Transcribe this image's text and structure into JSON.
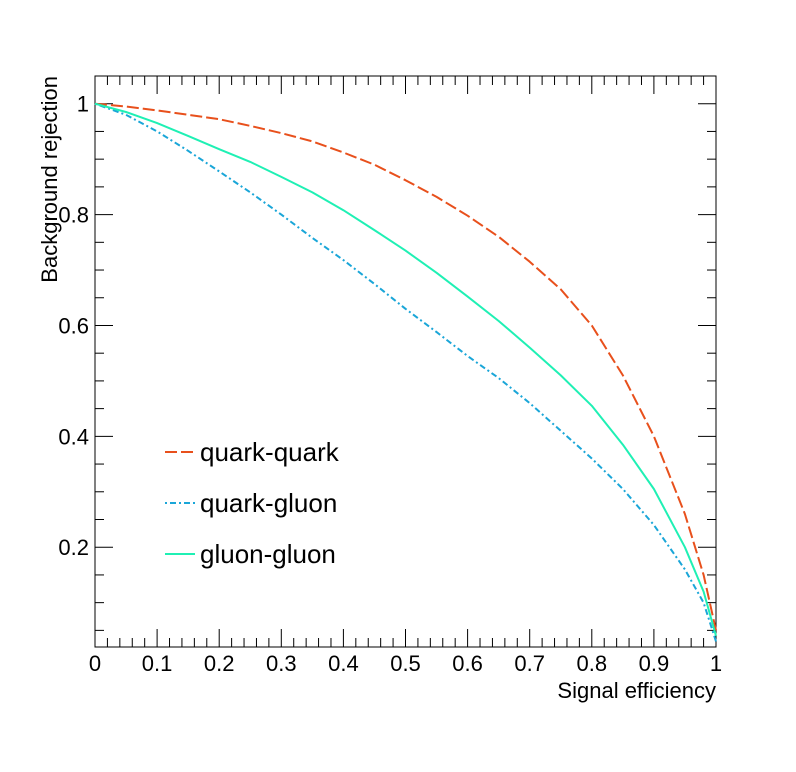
{
  "chart_data": {
    "type": "line",
    "title": "",
    "xlabel": "Signal efficiency",
    "ylabel": "Background rejection",
    "xlim": [
      0,
      1
    ],
    "ylim": [
      0.02,
      1.05
    ],
    "x_ticks": [
      0,
      0.1,
      0.2,
      0.3,
      0.4,
      0.5,
      0.6,
      0.7,
      0.8,
      0.9,
      1
    ],
    "x_tick_labels": [
      "0",
      "0.1",
      "0.2",
      "0.3",
      "0.4",
      "0.5",
      "0.6",
      "0.7",
      "0.8",
      "0.9",
      "1"
    ],
    "y_ticks": [
      0.2,
      0.4,
      0.6,
      0.8,
      1.0
    ],
    "y_tick_labels": [
      "0.2",
      "0.4",
      "0.6",
      "0.8",
      "1"
    ],
    "grid": false,
    "legend_position": "lower-left",
    "series": [
      {
        "name": "quark-quark",
        "color": "#e8501c",
        "style": "dashed",
        "x": [
          0,
          0.05,
          0.1,
          0.15,
          0.2,
          0.25,
          0.3,
          0.35,
          0.4,
          0.45,
          0.5,
          0.55,
          0.6,
          0.65,
          0.7,
          0.75,
          0.8,
          0.85,
          0.9,
          0.95,
          0.98,
          1.0
        ],
        "y": [
          1.0,
          0.995,
          0.988,
          0.98,
          0.972,
          0.96,
          0.947,
          0.932,
          0.912,
          0.89,
          0.862,
          0.832,
          0.798,
          0.76,
          0.715,
          0.665,
          0.6,
          0.51,
          0.4,
          0.26,
          0.15,
          0.05
        ]
      },
      {
        "name": "quark-gluon",
        "color": "#1aa6d8",
        "style": "dotted",
        "x": [
          0,
          0.05,
          0.1,
          0.15,
          0.2,
          0.25,
          0.3,
          0.35,
          0.4,
          0.45,
          0.5,
          0.55,
          0.6,
          0.65,
          0.7,
          0.75,
          0.8,
          0.85,
          0.9,
          0.95,
          0.98,
          1.0
        ],
        "y": [
          1.0,
          0.98,
          0.95,
          0.915,
          0.878,
          0.84,
          0.8,
          0.758,
          0.718,
          0.675,
          0.63,
          0.588,
          0.545,
          0.505,
          0.46,
          0.41,
          0.36,
          0.305,
          0.24,
          0.16,
          0.1,
          0.03
        ]
      },
      {
        "name": "gluon-gluon",
        "color": "#1ff0b4",
        "style": "solid",
        "x": [
          0,
          0.05,
          0.1,
          0.15,
          0.2,
          0.25,
          0.3,
          0.35,
          0.4,
          0.45,
          0.5,
          0.55,
          0.6,
          0.65,
          0.7,
          0.75,
          0.8,
          0.85,
          0.9,
          0.95,
          0.98,
          1.0
        ],
        "y": [
          1.0,
          0.985,
          0.965,
          0.942,
          0.918,
          0.895,
          0.868,
          0.84,
          0.808,
          0.772,
          0.735,
          0.695,
          0.652,
          0.608,
          0.56,
          0.51,
          0.455,
          0.385,
          0.305,
          0.2,
          0.12,
          0.04
        ]
      }
    ]
  }
}
